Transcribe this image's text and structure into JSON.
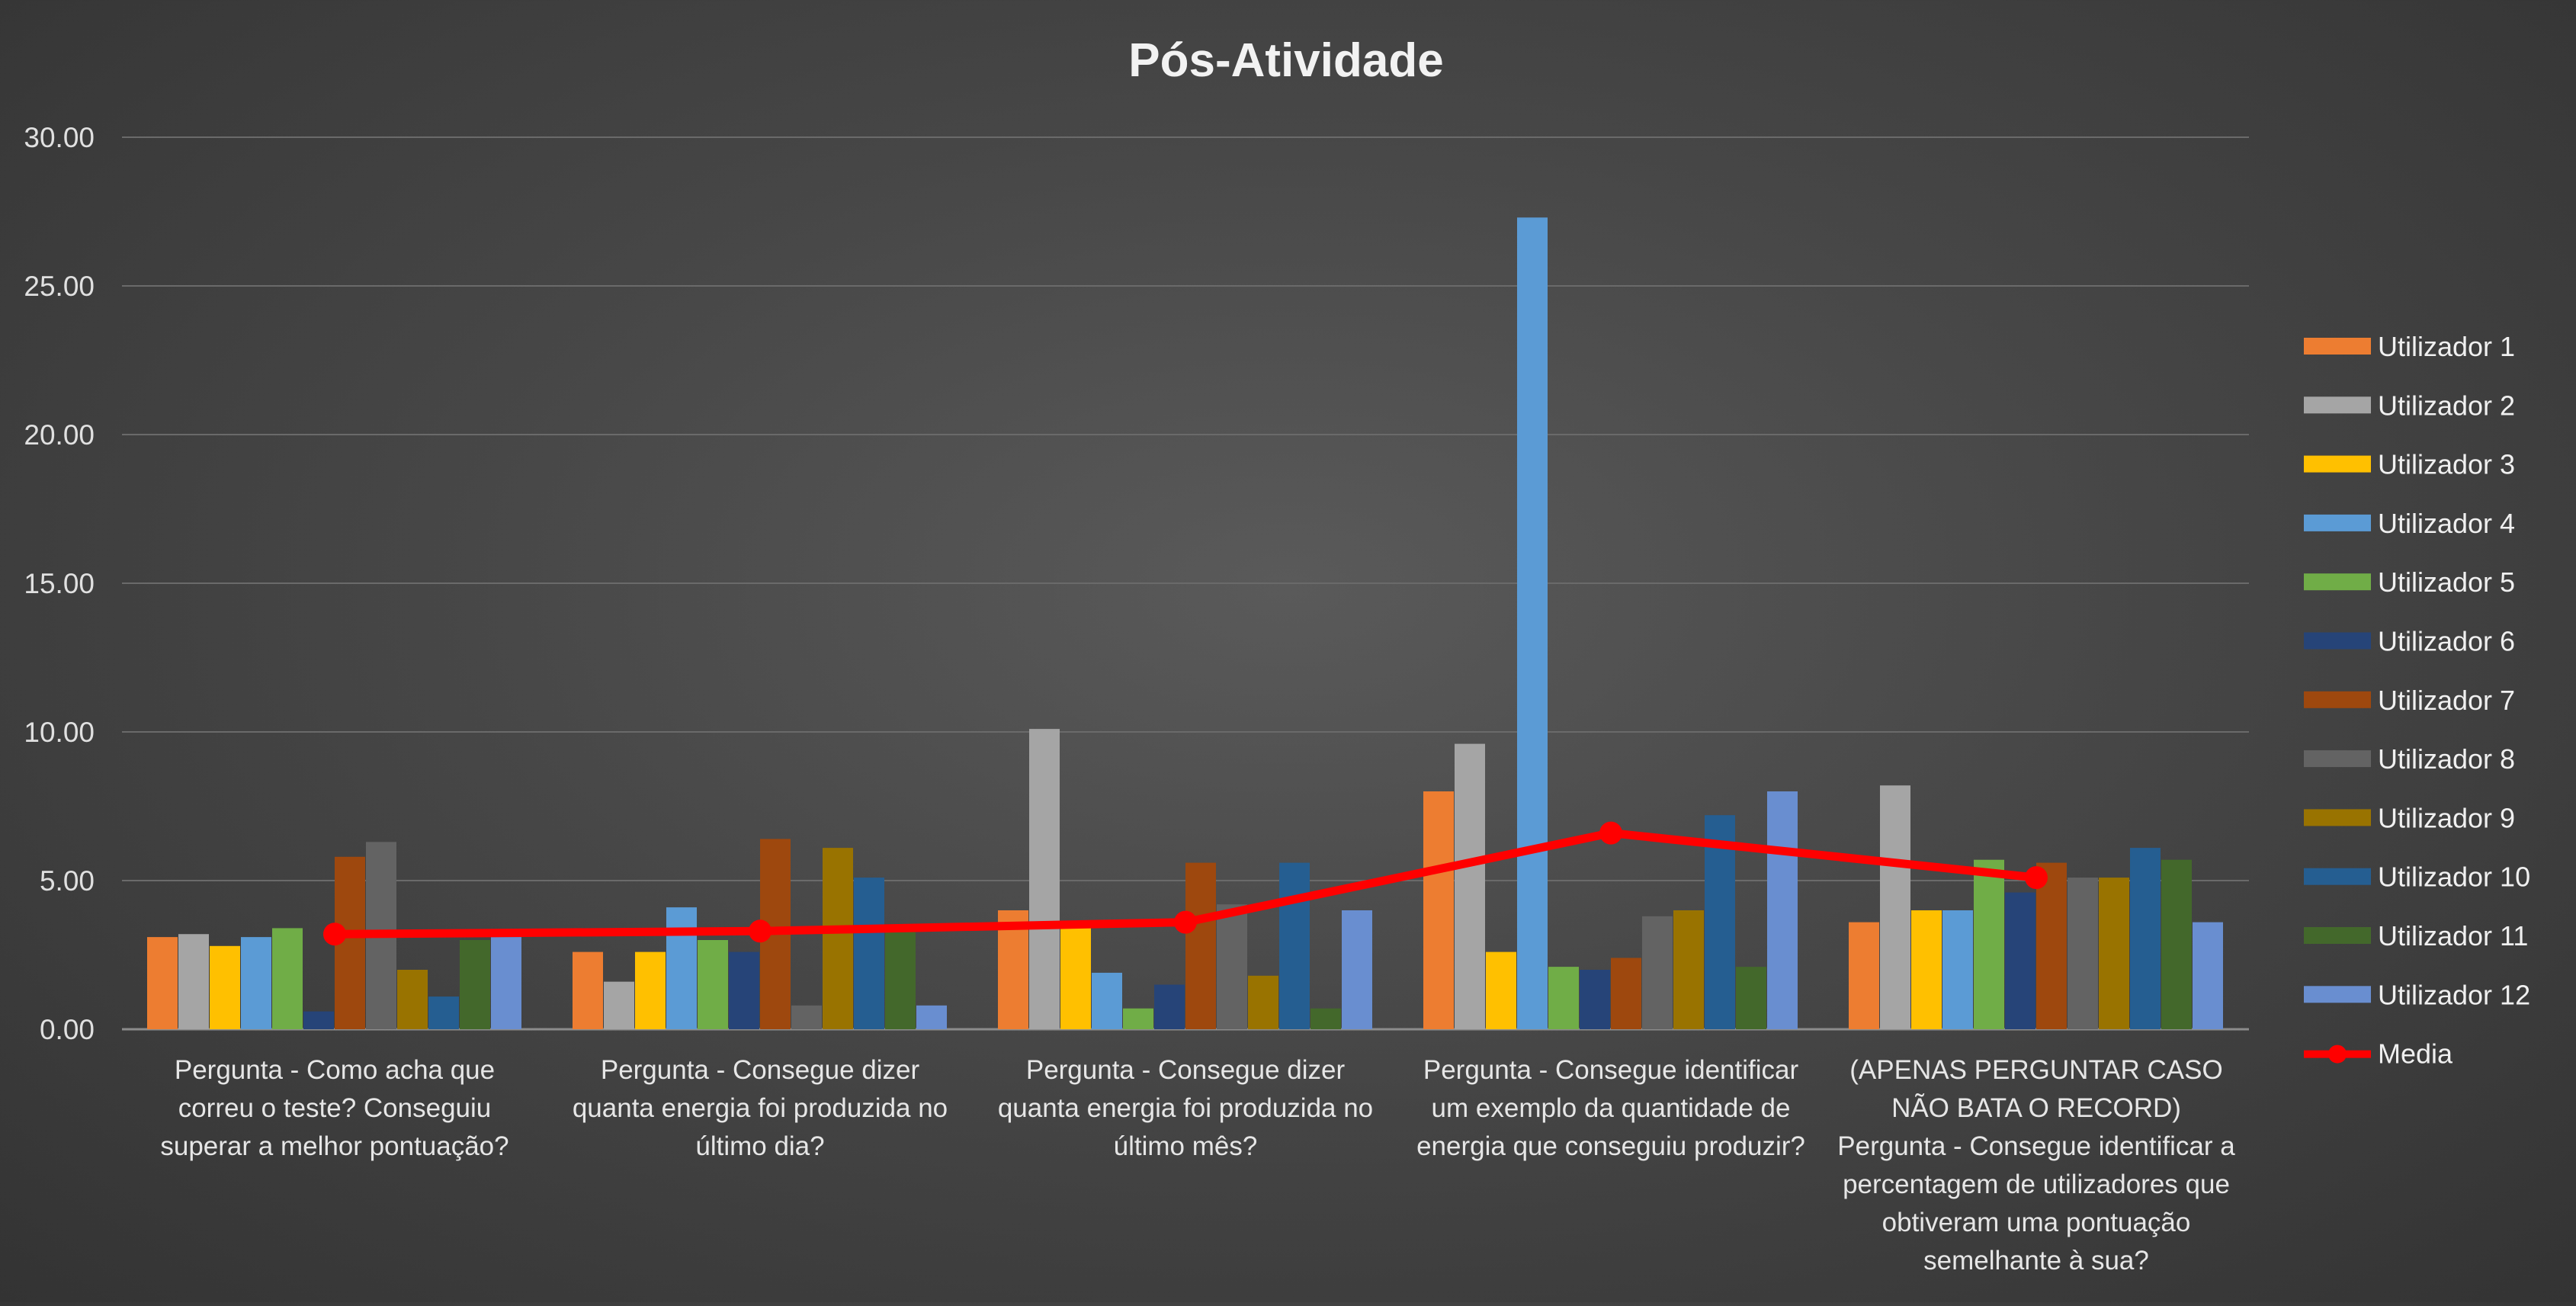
{
  "chart_data": {
    "type": "bar",
    "title": "Pós-Atividade",
    "xlabel": "",
    "ylabel": "",
    "ylim": [
      0,
      30
    ],
    "yticks": [
      "0.00",
      "5.00",
      "10.00",
      "15.00",
      "20.00",
      "25.00",
      "30.00"
    ],
    "grid": true,
    "legend_position": "right",
    "categories": [
      [
        "Pergunta - Como acha que",
        "correu o teste? Conseguiu",
        "superar a melhor pontuação?"
      ],
      [
        "Pergunta - Consegue dizer",
        "quanta energia foi produzida no",
        "último dia?"
      ],
      [
        "Pergunta - Consegue dizer",
        "quanta energia foi produzida no",
        "último mês?"
      ],
      [
        "Pergunta - Consegue identificar",
        "um exemplo da quantidade de",
        "energia que conseguiu produzir?"
      ],
      [
        "(APENAS PERGUNTAR CASO",
        "NÃO BATA O RECORD)",
        "Pergunta - Consegue identificar a",
        "percentagem de utilizadores que",
        "obtiveram uma pontuação",
        "semelhante à sua?"
      ]
    ],
    "series": [
      {
        "name": "Utilizador 1",
        "color": "#ED7D31",
        "values": [
          3.1,
          2.6,
          4.0,
          8.0,
          3.6
        ]
      },
      {
        "name": "Utilizador 2",
        "color": "#A5A5A5",
        "values": [
          3.2,
          1.6,
          10.1,
          9.6,
          8.2
        ]
      },
      {
        "name": "Utilizador 3",
        "color": "#FFC000",
        "values": [
          2.8,
          2.6,
          3.4,
          2.6,
          4.0
        ]
      },
      {
        "name": "Utilizador 4",
        "color": "#5B9BD5",
        "values": [
          3.1,
          4.1,
          1.9,
          27.3,
          4.0
        ]
      },
      {
        "name": "Utilizador 5",
        "color": "#70AD47",
        "values": [
          3.4,
          3.0,
          0.7,
          2.1,
          5.7
        ]
      },
      {
        "name": "Utilizador 6",
        "color": "#264478",
        "values": [
          0.6,
          2.6,
          1.5,
          2.0,
          4.6
        ]
      },
      {
        "name": "Utilizador 7",
        "color": "#9E480E",
        "values": [
          5.8,
          6.4,
          5.6,
          2.4,
          5.6
        ]
      },
      {
        "name": "Utilizador 8",
        "color": "#636363",
        "values": [
          6.3,
          0.8,
          4.2,
          3.8,
          5.1
        ]
      },
      {
        "name": "Utilizador 9",
        "color": "#997300",
        "values": [
          2.0,
          6.1,
          1.8,
          4.0,
          5.1
        ]
      },
      {
        "name": "Utilizador 10",
        "color": "#255E91",
        "values": [
          1.1,
          5.1,
          5.6,
          7.2,
          6.1
        ]
      },
      {
        "name": "Utilizador 11",
        "color": "#43682B",
        "values": [
          3.0,
          3.3,
          0.7,
          2.1,
          5.7
        ]
      },
      {
        "name": "Utilizador 12",
        "color": "#698ED0",
        "values": [
          3.1,
          0.8,
          4.0,
          8.0,
          3.6
        ]
      }
    ],
    "line_series": {
      "name": "Media",
      "color": "#FF0000",
      "values": [
        3.2,
        3.3,
        3.6,
        6.6,
        5.1
      ]
    }
  }
}
